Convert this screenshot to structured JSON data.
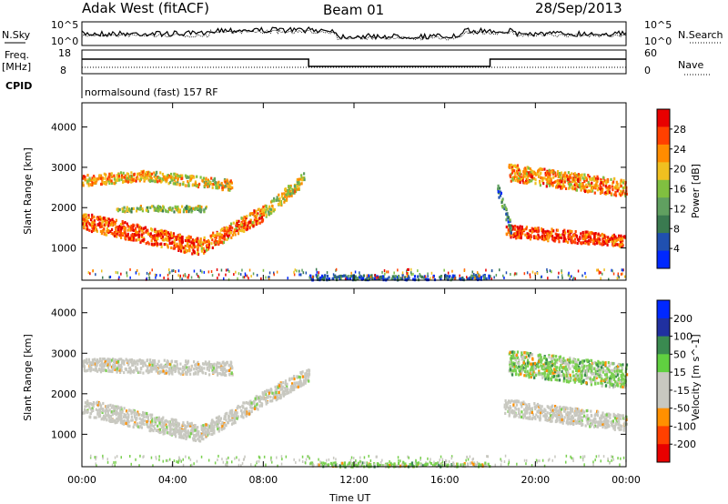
{
  "header": {
    "radar": "Adak West (fitACF)",
    "beam": "Beam 01",
    "date": "28/Sep/2013"
  },
  "top_panels": {
    "nsky_label": "N.Sky",
    "nsky_ticks": [
      "10^5",
      "10^0"
    ],
    "nsearch_label": "N.Search",
    "nsearch_ticks": [
      "10^5",
      "10^0"
    ],
    "freq_label": "Freq.",
    "freq_unit": "[MHz]",
    "freq_ticks": [
      "18",
      "8"
    ],
    "nave_label": "Nave",
    "nave_ticks": [
      "60",
      "0"
    ],
    "cpid_label": "CPID",
    "cpid_text": "normalsound (fast) 157 RF"
  },
  "colors": {
    "power": [
      "#0028ff",
      "#2050b0",
      "#3a7a50",
      "#60a060",
      "#80c040",
      "#f0c020",
      "#ff8c00",
      "#ff4000",
      "#e80000"
    ],
    "velocity": [
      "#e80000",
      "#ff4000",
      "#ff9000",
      "#c8c8c0",
      "#c8c8c0",
      "#60d040",
      "#3a8a50",
      "#2030a0",
      "#0028ff"
    ]
  },
  "chart_data": [
    {
      "type": "heatmap",
      "panel": "power",
      "ylabel": "Slant Range [km]",
      "yticks": [
        "4000",
        "3000",
        "2000",
        "1000"
      ],
      "ytick_values": [
        4000,
        3000,
        2000,
        1000
      ],
      "ylim": [
        200,
        4600
      ],
      "xlim": [
        0,
        24
      ],
      "colorbar_label": "Power [dB]",
      "colorbar_ticks": [
        "28",
        "24",
        "20",
        "16",
        "12",
        "8",
        "4"
      ],
      "colorbar_range": [
        0,
        32
      ],
      "bands": [
        {
          "t": [
            0,
            5.2
          ],
          "r": [
            1700,
            1050
          ],
          "w": 420,
          "p": 26
        },
        {
          "t": [
            0,
            2.8
          ],
          "r": [
            2700,
            2820
          ],
          "w": 260,
          "p": 22
        },
        {
          "t": [
            2.8,
            6.6
          ],
          "r": [
            2820,
            2580
          ],
          "w": 260,
          "p": 20
        },
        {
          "t": [
            5.2,
            8.0
          ],
          "r": [
            1050,
            1900
          ],
          "w": 380,
          "p": 24
        },
        {
          "t": [
            8.0,
            9.8
          ],
          "r": [
            1900,
            2750
          ],
          "w": 320,
          "p": 18
        },
        {
          "t": [
            1.5,
            5.5
          ],
          "r": [
            2000,
            2000
          ],
          "w": 140,
          "p": 16
        },
        {
          "t": [
            18.6,
            24
          ],
          "r": [
            1450,
            1200
          ],
          "w": 300,
          "p": 27
        },
        {
          "t": [
            18.8,
            24
          ],
          "r": [
            2900,
            2500
          ],
          "w": 420,
          "p": 23
        },
        {
          "t": [
            18.3,
            18.9
          ],
          "r": [
            2500,
            1500
          ],
          "w": 300,
          "p": 10
        },
        {
          "t": [
            10,
            18
          ],
          "r": [
            300,
            300
          ],
          "w": 120,
          "p": 6
        }
      ]
    },
    {
      "type": "heatmap",
      "panel": "velocity",
      "ylabel": "Slant Range [km]",
      "yticks": [
        "4000",
        "3000",
        "2000",
        "1000"
      ],
      "ytick_values": [
        4000,
        3000,
        2000,
        1000
      ],
      "ylim": [
        200,
        4600
      ],
      "xlim": [
        0,
        24
      ],
      "xlabel": "Time UT",
      "xticks": [
        "00:00",
        "04:00",
        "08:00",
        "12:00",
        "16:00",
        "20:00",
        "00:00"
      ],
      "xtick_values": [
        0,
        4,
        8,
        12,
        16,
        20,
        24
      ],
      "colorbar_label": "Velocity [m s^-1]",
      "colorbar_ticks": [
        "200",
        "100",
        "50",
        "15",
        "-15",
        "-50",
        "-100",
        "-200"
      ],
      "bands": [
        {
          "t": [
            0,
            5.2
          ],
          "r": [
            1700,
            1050
          ],
          "w": 420,
          "v": 0
        },
        {
          "t": [
            0,
            6.6
          ],
          "r": [
            2750,
            2650
          ],
          "w": 330,
          "v": 0
        },
        {
          "t": [
            5.2,
            8.0
          ],
          "r": [
            1050,
            1900
          ],
          "w": 380,
          "v": 0
        },
        {
          "t": [
            8.0,
            10.0
          ],
          "r": [
            1900,
            2500
          ],
          "w": 380,
          "v": 0
        },
        {
          "t": [
            18.6,
            24
          ],
          "r": [
            1700,
            1300
          ],
          "w": 400,
          "v": 0
        },
        {
          "t": [
            18.8,
            24
          ],
          "r": [
            2800,
            2450
          ],
          "w": 600,
          "v": 30
        },
        {
          "t": [
            10,
            18
          ],
          "r": [
            280,
            280
          ],
          "w": 100,
          "v": 30
        }
      ]
    }
  ]
}
